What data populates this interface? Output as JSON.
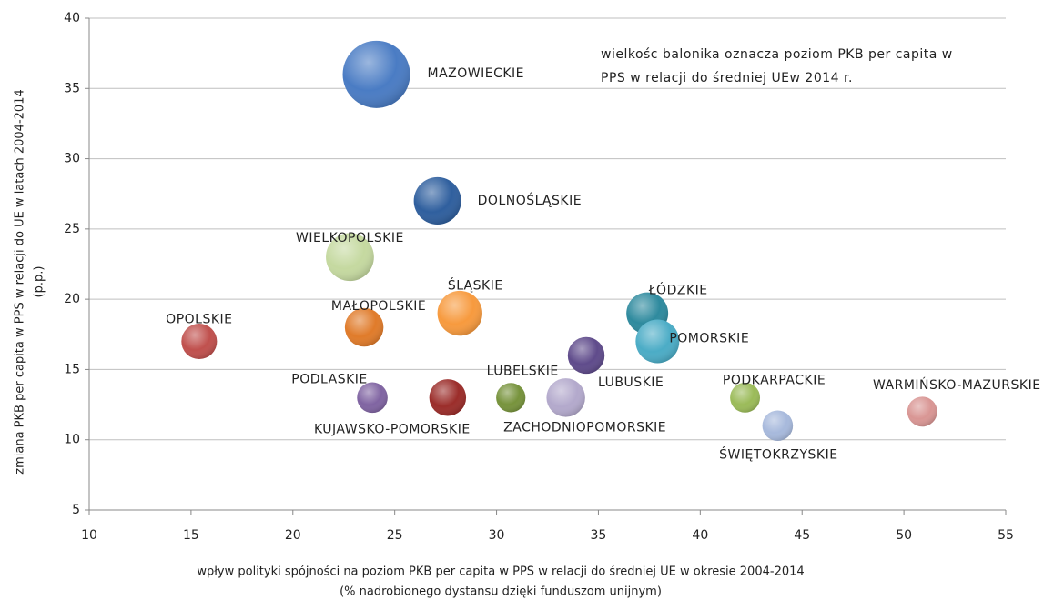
{
  "chart_data": {
    "type": "bubble",
    "annotation": [
      "wielkośc balonika oznacza poziom PKB per capita w",
      "PPS w relacji do średniej UEw 2014 r."
    ],
    "x_label": [
      "wpływ polityki spójności na poziom PKB per capita w PPS w relacji do średniej UE w okresie 2004-2014",
      "(% nadrobionego dystansu dzięki funduszom unijnym)"
    ],
    "y_label": [
      "zmiana PKB per capita w PPS w relacji  do UE w latach 2004-2014",
      "(p.p.)"
    ],
    "xlim": [
      10,
      55
    ],
    "xticks": [
      10,
      15,
      20,
      25,
      30,
      35,
      40,
      45,
      50,
      55
    ],
    "ylim": [
      5,
      40
    ],
    "yticks": [
      5,
      10,
      15,
      20,
      25,
      30,
      35,
      40
    ],
    "grid": true,
    "points": [
      {
        "label": "MAZOWIECKIE",
        "x": 24.1,
        "y": 36,
        "size": 108,
        "color": "#4a7cc4"
      },
      {
        "label": "DOLNOŚLĄSKIE",
        "x": 27.1,
        "y": 27,
        "size": 76,
        "color": "#2f5f9e"
      },
      {
        "label": "WIELKOPOLSKIE",
        "x": 22.8,
        "y": 23,
        "size": 77,
        "color": "#c5d9a0"
      },
      {
        "label": "ŚLĄSKIE",
        "x": 28.2,
        "y": 19,
        "size": 72,
        "color": "#f79a3e"
      },
      {
        "label": "ŁÓDZKIE",
        "x": 37.4,
        "y": 19,
        "size": 67,
        "color": "#2e8a9e"
      },
      {
        "label": "POMORSKIE",
        "x": 37.9,
        "y": 17,
        "size": 70,
        "color": "#4bacc6"
      },
      {
        "label": "MAŁOPOLSKIE",
        "x": 23.5,
        "y": 18,
        "size": 62,
        "color": "#e07b2a"
      },
      {
        "label": "OPOLSKIE",
        "x": 15.4,
        "y": 17,
        "size": 57,
        "color": "#c0504d"
      },
      {
        "label": "LUBUSKIE",
        "x": 34.4,
        "y": 16,
        "size": 59,
        "color": "#5f4b8b"
      },
      {
        "label": "PODLASKIE",
        "x": 23.9,
        "y": 13,
        "size": 49,
        "color": "#8064a2"
      },
      {
        "label": "KUJAWSKO-POMORSKIE",
        "x": 27.6,
        "y": 13,
        "size": 59,
        "color": "#9b2d2a"
      },
      {
        "label": "LUBELSKIE",
        "x": 30.7,
        "y": 13,
        "size": 47,
        "color": "#77933c"
      },
      {
        "label": "ZACHODNIOPOMORSKIE",
        "x": 33.4,
        "y": 13,
        "size": 62,
        "color": "#b3a9cc"
      },
      {
        "label": "PODKARPACKIE",
        "x": 42.2,
        "y": 13,
        "size": 48,
        "color": "#9bbb59"
      },
      {
        "label": "ŚWIĘTOKRZYSKIE",
        "x": 43.8,
        "y": 11,
        "size": 49,
        "color": "#a7b9dc"
      },
      {
        "label": "WARMIŃSKO-MAZURSKIE",
        "x": 50.9,
        "y": 12,
        "size": 48,
        "color": "#d99694"
      }
    ]
  }
}
